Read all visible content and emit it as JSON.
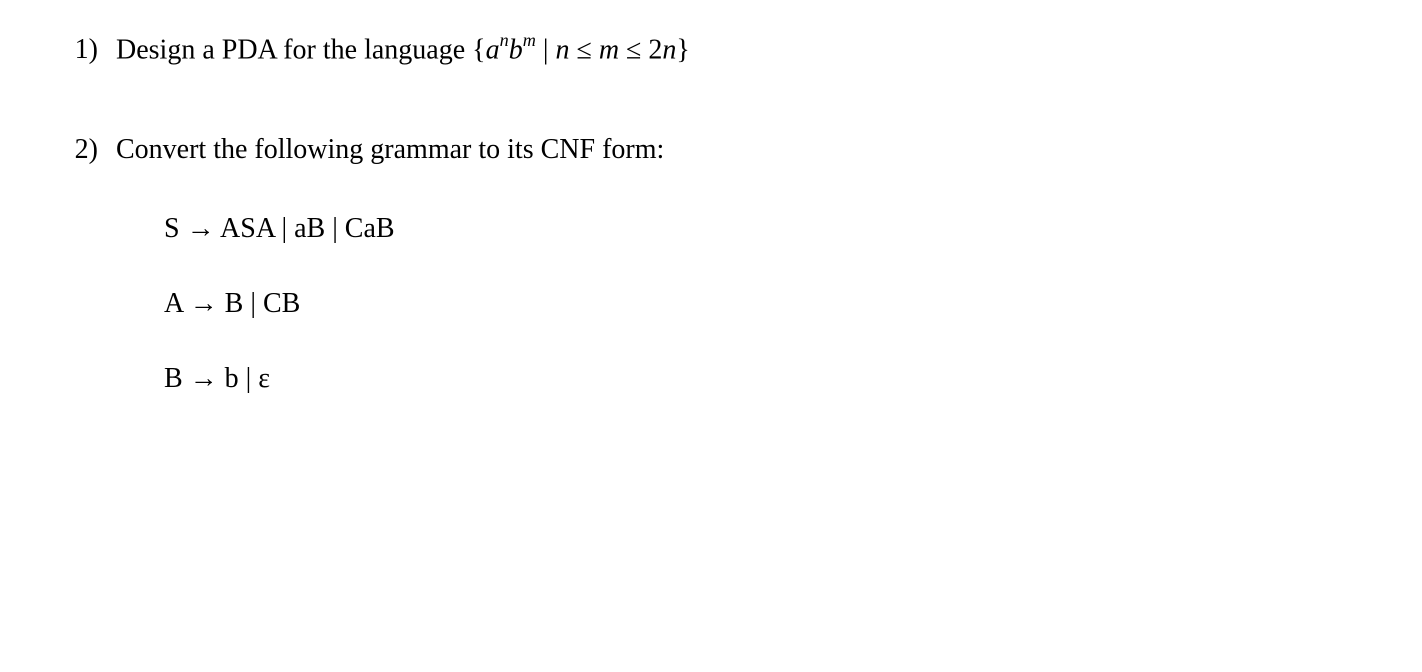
{
  "problem1": {
    "number": "1)",
    "prompt_prefix": "Design a PDA for the language ",
    "set_open": "{",
    "a": "a",
    "exp_n": "n",
    "b": "b",
    "exp_m": "m",
    "bar": " | ",
    "cond_n": "n",
    "leq1": " ≤ ",
    "cond_m": "m",
    "leq2": " ≤ ",
    "two": "2",
    "cond_n2": "n",
    "set_close": "}"
  },
  "problem2": {
    "number": "2)",
    "prompt": "Convert the following grammar to its CNF form:",
    "rules": {
      "r1": "S → ASA | aB | CaB",
      "r2": "A → B | CB",
      "r3": "B → b | ε"
    }
  }
}
